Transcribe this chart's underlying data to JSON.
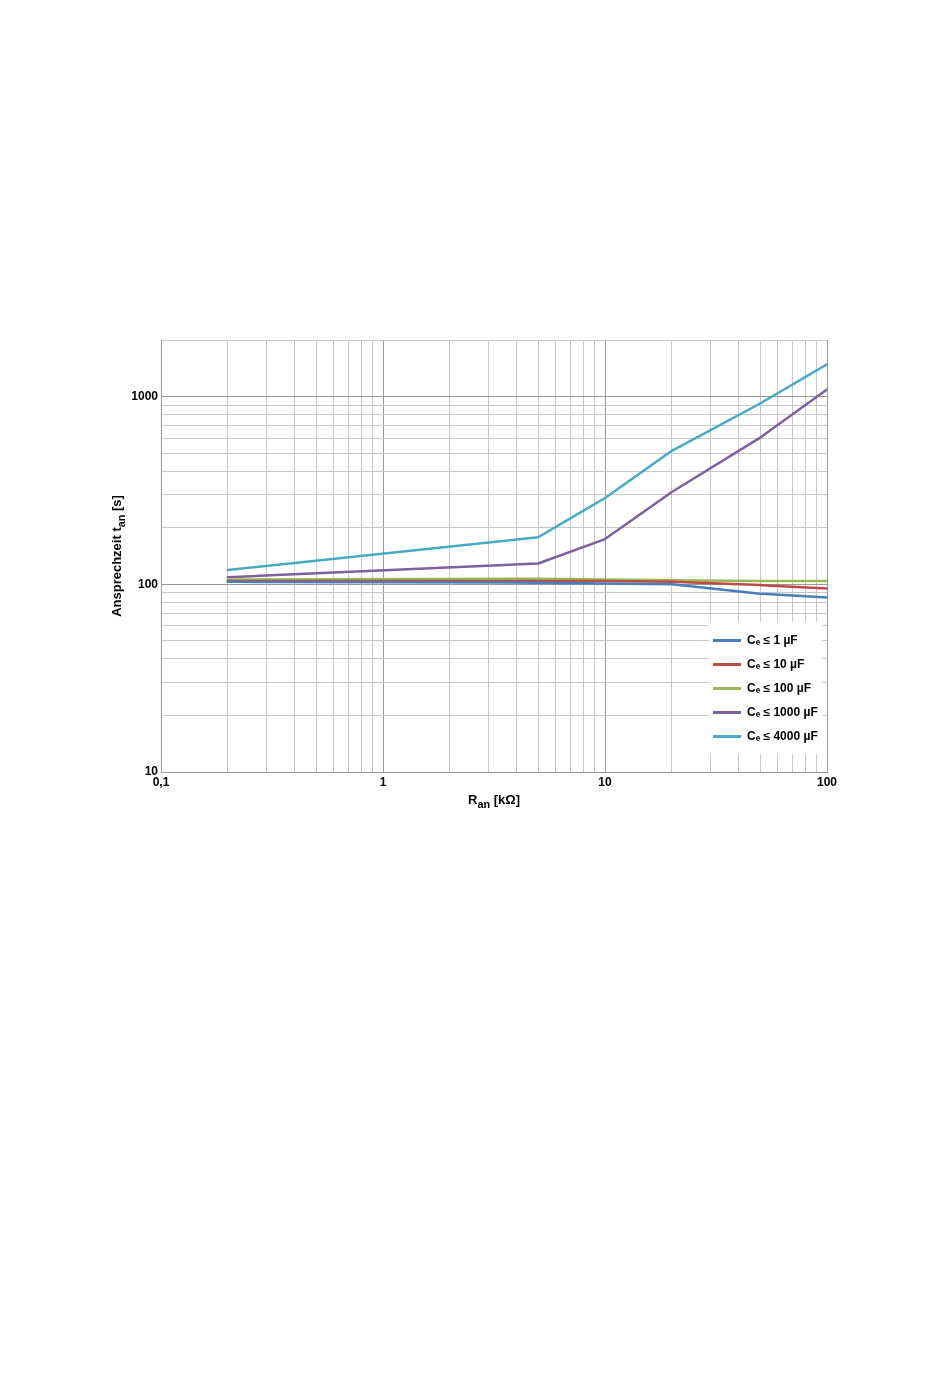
{
  "chart_data": {
    "type": "line",
    "xlabel": "R$_{an}$ [kΩ]",
    "ylabel": "Ansprechzeit  t$_{an}$ [s]",
    "x": [
      0.2,
      5,
      10,
      20,
      50,
      100
    ],
    "log": "xy",
    "xlim": [
      0.1,
      100
    ],
    "xticks": [
      {
        "value": 0.1,
        "label": "0,1"
      },
      1,
      10,
      100
    ],
    "ylim": [
      10,
      2000
    ],
    "yticks": [
      10,
      100,
      1000
    ],
    "grid": true,
    "legend": "bottom right",
    "marker": "none",
    "line_style": "solid",
    "series": [
      {
        "name": "Cₑ ≤ 1 µF",
        "color": "#4a7ebb",
        "values": [
          103,
          102,
          101,
          100,
          89,
          85
        ]
      },
      {
        "name": "Cₑ ≤ 10 µF",
        "color": "#be4b48",
        "values": [
          104,
          104,
          104,
          103,
          99,
          95
        ]
      },
      {
        "name": "Cₑ ≤ 100 µF",
        "color": "#98b954",
        "values": [
          106,
          107,
          106,
          105,
          104,
          104
        ]
      },
      {
        "name": "Cₑ ≤ 1000 µF",
        "color": "#7d60a0",
        "values": [
          109,
          129,
          174,
          310,
          604,
          1089
        ]
      },
      {
        "name": "Cₑ ≤ 4000 µF",
        "color": "#46aac5",
        "values": [
          119,
          178,
          288,
          514,
          918,
          1483
        ]
      }
    ]
  }
}
